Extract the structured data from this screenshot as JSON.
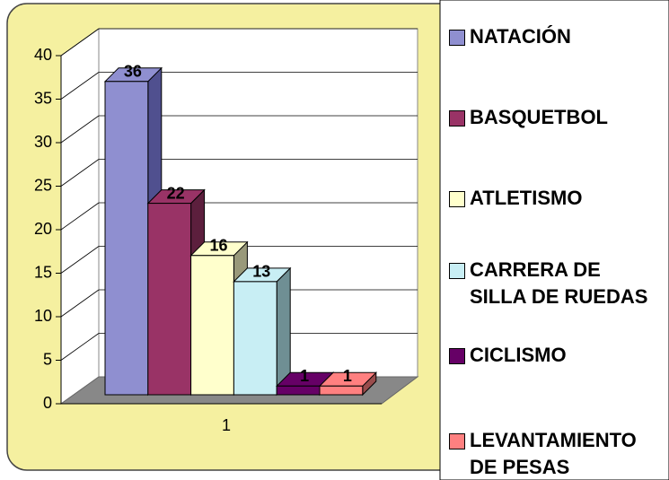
{
  "chart_data": {
    "type": "bar3d",
    "categories": [
      "1"
    ],
    "series": [
      {
        "name": "NATACIÓN",
        "color": "#8f8fd0",
        "side": "#50508f",
        "values": [
          36
        ]
      },
      {
        "name": "BASQUETBOL",
        "color": "#993366",
        "side": "#5c1f3d",
        "values": [
          22
        ]
      },
      {
        "name": "ATLETISMO",
        "color": "#ffffcc",
        "side": "#99997a",
        "values": [
          16
        ]
      },
      {
        "name": "CARRERA DE SILLA DE RUEDAS",
        "color": "#c8eef4",
        "side": "#6f8f94",
        "values": [
          13
        ]
      },
      {
        "name": "CICLISMO",
        "color": "#660066",
        "side": "#3a003a",
        "values": [
          1
        ]
      },
      {
        "name": "LEVANTAMIENTO DE PESAS",
        "color": "#ff8080",
        "side": "#994c4c",
        "values": [
          1
        ]
      }
    ],
    "ylim": [
      0,
      40
    ],
    "yticks": [
      0,
      5,
      10,
      15,
      20,
      25,
      30,
      35,
      40
    ],
    "grid": true,
    "legend": "right"
  }
}
